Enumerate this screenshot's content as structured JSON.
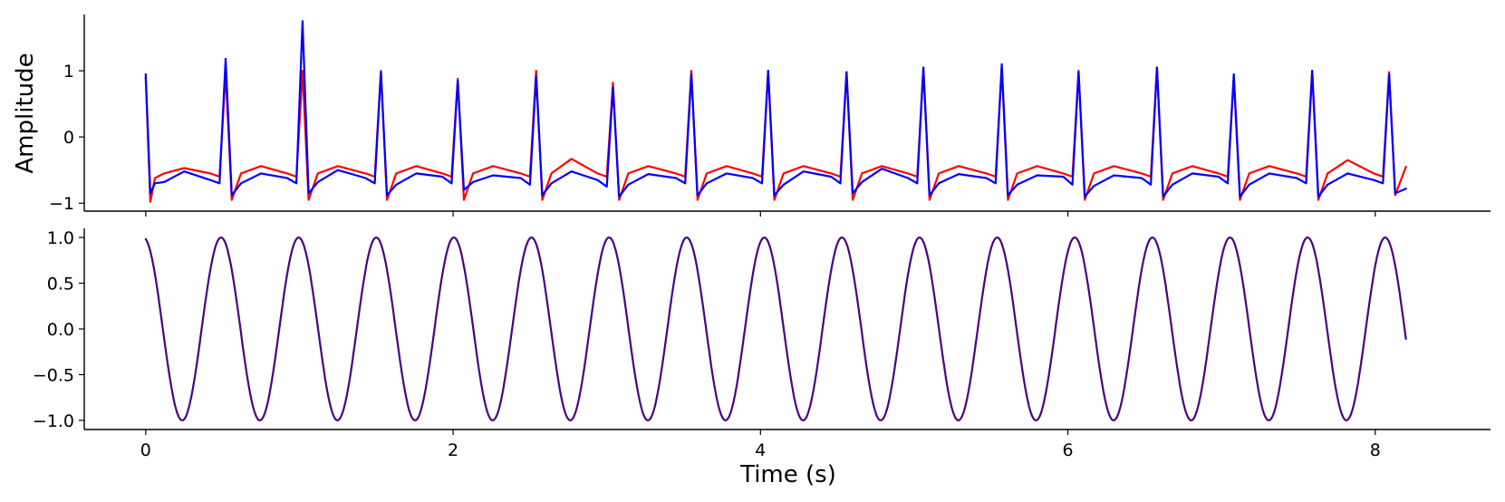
{
  "chart_data": [
    {
      "type": "line",
      "panel": "top",
      "ylabel": "Amplitude",
      "xlabel": "",
      "xlim": [
        -0.4,
        8.75
      ],
      "ylim": [
        -1.12,
        1.85
      ],
      "xticks": [
        0,
        2,
        4,
        6,
        8
      ],
      "show_xtick_labels": false,
      "yticks": [
        -1,
        0,
        1
      ],
      "ytick_labels": [
        "−1",
        "0",
        "1"
      ],
      "grid": false,
      "beat_times": [
        0.0,
        0.51,
        1.01,
        1.52,
        2.02,
        2.53,
        3.03,
        3.54,
        4.04,
        4.55,
        5.05,
        5.56,
        6.06,
        6.57,
        7.07,
        7.58,
        8.08
      ],
      "series": [
        {
          "color": "#ff0000",
          "x": [
            0.0,
            0.03,
            0.06,
            0.12,
            0.25,
            0.42,
            0.48,
            0.52,
            0.56,
            0.62,
            0.75,
            0.92,
            0.98,
            1.02,
            1.06,
            1.12,
            1.25,
            1.43,
            1.49,
            1.53,
            1.57,
            1.63,
            1.76,
            1.93,
            1.99,
            2.03,
            2.07,
            2.13,
            2.26,
            2.44,
            2.5,
            2.54,
            2.58,
            2.64,
            2.77,
            2.94,
            3.0,
            3.04,
            3.08,
            3.14,
            3.27,
            3.45,
            3.51,
            3.55,
            3.59,
            3.65,
            3.78,
            3.95,
            4.01,
            4.05,
            4.09,
            4.15,
            4.28,
            4.46,
            4.52,
            4.56,
            4.6,
            4.66,
            4.79,
            4.96,
            5.02,
            5.06,
            5.1,
            5.16,
            5.29,
            5.47,
            5.53,
            5.57,
            5.61,
            5.67,
            5.8,
            5.97,
            6.03,
            6.07,
            6.11,
            6.17,
            6.3,
            6.48,
            6.54,
            6.58,
            6.62,
            6.68,
            6.81,
            6.98,
            7.04,
            7.08,
            7.12,
            7.18,
            7.31,
            7.49,
            7.55,
            7.59,
            7.63,
            7.69,
            7.82,
            7.99,
            8.05,
            8.09,
            8.13,
            8.2
          ],
          "y": [
            0.9,
            -0.98,
            -0.62,
            -0.55,
            -0.47,
            -0.55,
            -0.6,
            0.98,
            -0.95,
            -0.55,
            -0.44,
            -0.55,
            -0.6,
            1.0,
            -0.95,
            -0.55,
            -0.44,
            -0.55,
            -0.6,
            1.0,
            -0.95,
            -0.55,
            -0.44,
            -0.55,
            -0.6,
            0.88,
            -0.95,
            -0.55,
            -0.44,
            -0.55,
            -0.6,
            1.0,
            -0.95,
            -0.55,
            -0.33,
            -0.55,
            -0.6,
            0.82,
            -0.95,
            -0.55,
            -0.44,
            -0.55,
            -0.6,
            1.0,
            -0.95,
            -0.55,
            -0.44,
            -0.55,
            -0.6,
            1.0,
            -0.95,
            -0.55,
            -0.44,
            -0.55,
            -0.6,
            0.98,
            -0.95,
            -0.55,
            -0.44,
            -0.55,
            -0.6,
            1.05,
            -0.95,
            -0.55,
            -0.44,
            -0.55,
            -0.6,
            1.05,
            -0.95,
            -0.55,
            -0.44,
            -0.55,
            -0.6,
            1.0,
            -0.95,
            -0.55,
            -0.44,
            -0.55,
            -0.6,
            1.05,
            -0.95,
            -0.55,
            -0.44,
            -0.55,
            -0.6,
            0.9,
            -0.95,
            -0.55,
            -0.44,
            -0.55,
            -0.6,
            1.0,
            -0.95,
            -0.55,
            -0.35,
            -0.55,
            -0.6,
            0.98,
            -0.88,
            -0.45
          ]
        },
        {
          "color": "#0000ff",
          "x": [
            0.0,
            0.03,
            0.06,
            0.12,
            0.25,
            0.42,
            0.48,
            0.52,
            0.56,
            0.62,
            0.75,
            0.92,
            0.98,
            1.02,
            1.06,
            1.12,
            1.25,
            1.43,
            1.49,
            1.53,
            1.57,
            1.63,
            1.76,
            1.93,
            1.99,
            2.03,
            2.07,
            2.13,
            2.26,
            2.44,
            2.5,
            2.54,
            2.58,
            2.64,
            2.77,
            2.94,
            3.0,
            3.04,
            3.08,
            3.14,
            3.27,
            3.45,
            3.51,
            3.55,
            3.59,
            3.65,
            3.78,
            3.95,
            4.01,
            4.05,
            4.09,
            4.15,
            4.28,
            4.46,
            4.52,
            4.56,
            4.6,
            4.66,
            4.79,
            4.96,
            5.02,
            5.06,
            5.1,
            5.16,
            5.29,
            5.47,
            5.53,
            5.57,
            5.61,
            5.67,
            5.8,
            5.97,
            6.03,
            6.07,
            6.11,
            6.17,
            6.3,
            6.48,
            6.54,
            6.58,
            6.62,
            6.68,
            6.81,
            6.98,
            7.04,
            7.08,
            7.12,
            7.18,
            7.31,
            7.49,
            7.55,
            7.59,
            7.63,
            7.69,
            7.82,
            7.99,
            8.05,
            8.09,
            8.13,
            8.2
          ],
          "y": [
            0.95,
            -0.85,
            -0.7,
            -0.68,
            -0.52,
            -0.65,
            -0.7,
            1.18,
            -0.88,
            -0.7,
            -0.55,
            -0.62,
            -0.7,
            1.75,
            -0.85,
            -0.68,
            -0.5,
            -0.62,
            -0.7,
            0.98,
            -0.88,
            -0.72,
            -0.55,
            -0.6,
            -0.7,
            0.85,
            -0.8,
            -0.68,
            -0.58,
            -0.62,
            -0.72,
            0.92,
            -0.88,
            -0.7,
            -0.52,
            -0.65,
            -0.75,
            0.75,
            -0.9,
            -0.72,
            -0.56,
            -0.62,
            -0.7,
            0.95,
            -0.88,
            -0.7,
            -0.55,
            -0.62,
            -0.7,
            1.0,
            -0.88,
            -0.72,
            -0.52,
            -0.6,
            -0.7,
            0.98,
            -0.85,
            -0.68,
            -0.48,
            -0.62,
            -0.7,
            1.05,
            -0.88,
            -0.7,
            -0.56,
            -0.62,
            -0.7,
            1.1,
            -0.88,
            -0.72,
            -0.58,
            -0.6,
            -0.72,
            0.98,
            -0.9,
            -0.74,
            -0.58,
            -0.62,
            -0.72,
            1.05,
            -0.9,
            -0.72,
            -0.55,
            -0.6,
            -0.7,
            0.95,
            -0.9,
            -0.72,
            -0.55,
            -0.62,
            -0.7,
            1.0,
            -0.9,
            -0.72,
            -0.55,
            -0.65,
            -0.7,
            0.95,
            -0.85,
            -0.78
          ]
        }
      ]
    },
    {
      "type": "line",
      "panel": "bottom",
      "xlabel": "Time (s)",
      "ylabel": "",
      "xlim": [
        -0.4,
        8.75
      ],
      "ylim": [
        -1.1,
        1.1
      ],
      "xticks": [
        0,
        2,
        4,
        6,
        8
      ],
      "xtick_labels": [
        "0",
        "2",
        "4",
        "6",
        "8"
      ],
      "yticks": [
        -1.0,
        -0.5,
        0.0,
        0.5,
        1.0
      ],
      "ytick_labels": [
        "−1.0",
        "−0.5",
        "0.0",
        "0.5",
        "1.0"
      ],
      "grid": false,
      "series": [
        {
          "color": "#4b0082",
          "form": "cosine",
          "amplitude": 1.0,
          "period_s": 0.505,
          "phase_offset_s": 0.015,
          "x_range": [
            0.0,
            8.2
          ]
        }
      ]
    }
  ]
}
